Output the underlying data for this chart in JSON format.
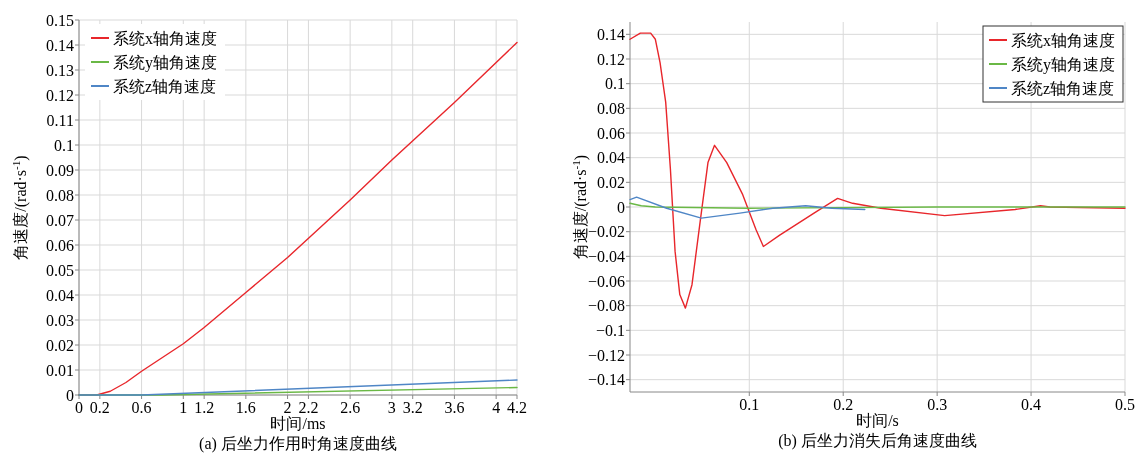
{
  "chart_data": [
    {
      "type": "line",
      "title": "(a) 后坐力作用时角速度曲线",
      "xlabel": "时间/ms",
      "ylabel": "角速度/(rad·s$^{-1}$)",
      "xlim": [
        0,
        4.2
      ],
      "ylim": [
        0,
        0.15
      ],
      "xticks": [
        0,
        0.2,
        0.6,
        1,
        1.2,
        1.6,
        2,
        2.2,
        2.6,
        3,
        3.2,
        3.6,
        4,
        4.2
      ],
      "yticks": [
        0,
        0.01,
        0.02,
        0.03,
        0.04,
        0.05,
        0.06,
        0.07,
        0.08,
        0.09,
        0.1,
        0.11,
        0.12,
        0.13,
        0.14,
        0.15
      ],
      "grid": true,
      "legend": "top left",
      "series": [
        {
          "name": "系统x轴角速度",
          "color": "#e8262b",
          "x": [
            0,
            0.1,
            0.17,
            0.3,
            0.45,
            0.6,
            0.8,
            1,
            1.2,
            1.6,
            2,
            2.6,
            3,
            3.6,
            4.2
          ],
          "values": [
            0,
            0,
            0,
            0.0015,
            0.005,
            0.0095,
            0.015,
            0.0205,
            0.027,
            0.041,
            0.055,
            0.078,
            0.094,
            0.117,
            0.141
          ]
        },
        {
          "name": "系统y轴角速度",
          "color": "#6ab845",
          "x": [
            0,
            0.8,
            4.2
          ],
          "values": [
            0,
            0,
            0.003
          ]
        },
        {
          "name": "系统z轴角速度",
          "color": "#4f86c6",
          "x": [
            0,
            0.6,
            4.2
          ],
          "values": [
            0,
            0,
            0.006
          ]
        }
      ]
    },
    {
      "type": "line",
      "title": "(b) 后坐力消失后角速度曲线",
      "xlabel": "时间/s",
      "ylabel": "角速度/(rad·s$^{-1}$)",
      "xlim": [
        -0.027,
        0.5
      ],
      "ylim": [
        -0.15,
        0.15
      ],
      "xticks": [
        0.1,
        0.2,
        0.3,
        0.4,
        0.5
      ],
      "yticks": [
        {
          "value": -0.14,
          "label": "−0.14"
        },
        {
          "value": -0.12,
          "label": "−0.12"
        },
        {
          "value": -0.1,
          "label": "−0.1"
        },
        {
          "value": -0.08,
          "label": "−0.08"
        },
        {
          "value": -0.06,
          "label": "−0.06"
        },
        {
          "value": -0.04,
          "label": "−0.04"
        },
        {
          "value": -0.02,
          "label": "−0.02"
        },
        0,
        0.02,
        0.04,
        0.06,
        0.08,
        0.1,
        0.12,
        0.14
      ],
      "grid": true,
      "legend": "top right",
      "series": [
        {
          "name": "系统x轴角速度",
          "color": "#e8262b",
          "x": [
            -0.027,
            -0.016,
            -0.005,
            0,
            0.005,
            0.011,
            0.016,
            0.021,
            0.026,
            0.032,
            0.039,
            0.048,
            0.056,
            0.063,
            0.076,
            0.093,
            0.107,
            0.115,
            0.132,
            0.171,
            0.194,
            0.21,
            0.24,
            0.308,
            0.383,
            0.41,
            0.42,
            0.5
          ],
          "values": [
            0.136,
            0.141,
            0.141,
            0.136,
            0.117,
            0.085,
            0.031,
            -0.036,
            -0.071,
            -0.082,
            -0.063,
            -0.01,
            0.036,
            0.05,
            0.036,
            0.01,
            -0.018,
            -0.032,
            -0.023,
            -0.004,
            0.007,
            0.003,
            -0.001,
            -0.007,
            -0.002,
            0.001,
            0,
            -0.001
          ]
        },
        {
          "name": "系统y轴角速度",
          "color": "#6ab845",
          "x": [
            -0.027,
            -0.015,
            0,
            0.1,
            0.3,
            0.5
          ],
          "values": [
            0.003,
            0.001,
            0,
            -0.001,
            0,
            0
          ]
        },
        {
          "name": "系统z轴角速度",
          "color": "#4f86c6",
          "x": [
            -0.027,
            -0.02,
            0.012,
            0.049,
            0.09,
            0.125,
            0.16,
            0.188,
            0.223
          ],
          "values": [
            0.006,
            0.008,
            -0.001,
            -0.009,
            -0.005,
            -0.001,
            0.001,
            -0.001,
            -0.002
          ]
        }
      ]
    }
  ]
}
